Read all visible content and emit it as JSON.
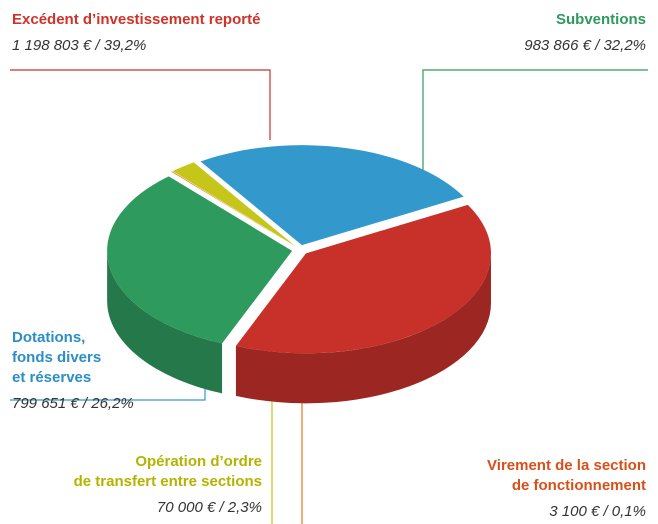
{
  "chart_data": {
    "type": "pie",
    "categories": [
      [
        "Excédent d’investissement reporté"
      ],
      [
        "Subventions"
      ],
      [
        "Virement de la section",
        "de fonctionnement"
      ],
      [
        "Opération d’ordre",
        "de transfert entre sections"
      ],
      [
        "Dotations,",
        "fonds divers",
        "et réserves"
      ]
    ],
    "values": [
      1198803,
      983866,
      3100,
      70000,
      799651
    ],
    "value_labels": [
      "1 198 803 € / 39,2%",
      "983 866 € / 32,2%",
      "3 100 € / 0,1%",
      "70 000 € / 2,3%",
      "799 651 € / 26,2%"
    ],
    "colors": [
      "#c8312a",
      "#2e9a5d",
      "#e07b1a",
      "#c6c61a",
      "#3399cc"
    ]
  }
}
